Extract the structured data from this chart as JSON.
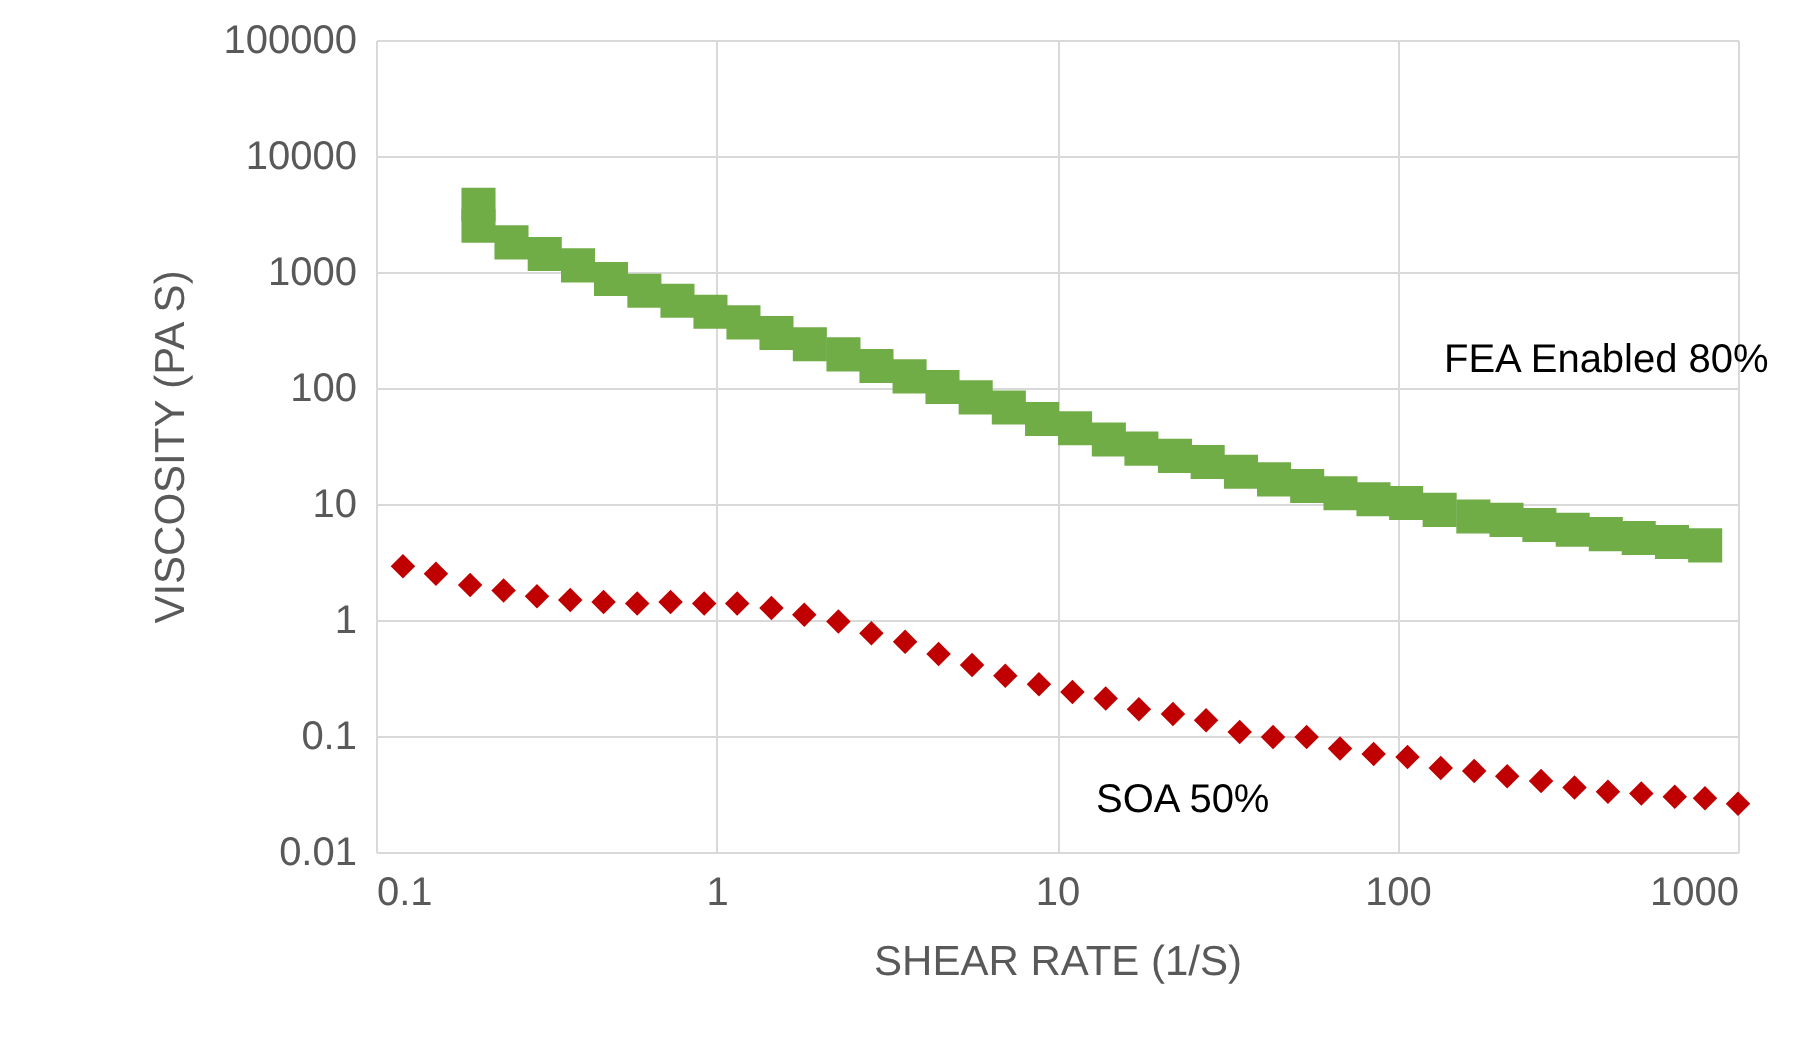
{
  "chart_data": {
    "type": "scatter",
    "xlabel": "SHEAR RATE (1/S)",
    "ylabel": "VISCOSITY (PA S)",
    "log": "xy",
    "grid": true,
    "legend": false,
    "xlim": [
      0.1,
      1000
    ],
    "xticks": [
      0.1,
      1,
      10,
      100,
      1000
    ],
    "ylim": [
      0.01,
      100000
    ],
    "yticks": [
      0.01,
      0.1,
      1,
      10,
      100,
      1000,
      10000,
      100000
    ],
    "series": [
      {
        "name": "FEA Enabled 80%",
        "color": "#70ad47",
        "marker": "square",
        "x": [
          0.2,
          0.2,
          0.25,
          0.313,
          0.392,
          0.49,
          0.614,
          0.768,
          0.96,
          1.2,
          1.5,
          1.88,
          2.36,
          2.95,
          3.69,
          4.61,
          5.77,
          7.22,
          9.04,
          11.3,
          14.2,
          17.7,
          22.2,
          27.7,
          34.7,
          43.4,
          54.3,
          68,
          85,
          106,
          133,
          167,
          209,
          261,
          327,
          409,
          511,
          640,
          801
        ],
        "values": [
          3800,
          2500,
          1800,
          1430,
          1140,
          870,
          690,
          565,
          455,
          368,
          298,
          238,
          195,
          155,
          126,
          102,
          83,
          68,
          54,
          45,
          36,
          30,
          26,
          23,
          19,
          16.3,
          14.3,
          12.4,
          11,
          10.2,
          8.9,
          7.8,
          7.3,
          6.6,
          6.0,
          5.5,
          5.1,
          4.7,
          4.4
        ]
      },
      {
        "name": "SOA 50%",
        "color": "#c00000",
        "marker": "diamond",
        "x": [
          0.12,
          0.15,
          0.189,
          0.237,
          0.297,
          0.372,
          0.466,
          0.585,
          0.733,
          0.92,
          1.15,
          1.45,
          1.81,
          2.28,
          2.85,
          3.58,
          4.49,
          5.63,
          7.05,
          8.85,
          11.1,
          13.9,
          17.4,
          21.9,
          27.4,
          34.4,
          43.1,
          54.1,
          67.8,
          85.1,
          107,
          134,
          168,
          210,
          264,
          331,
          415,
          520,
          652,
          800,
          1000
        ],
        "values": [
          2.9,
          2.5,
          2.0,
          1.8,
          1.6,
          1.49,
          1.43,
          1.39,
          1.43,
          1.39,
          1.39,
          1.27,
          1.11,
          0.97,
          0.77,
          0.65,
          0.51,
          0.41,
          0.33,
          0.28,
          0.24,
          0.21,
          0.17,
          0.155,
          0.137,
          0.108,
          0.098,
          0.098,
          0.078,
          0.07,
          0.066,
          0.053,
          0.05,
          0.045,
          0.041,
          0.036,
          0.033,
          0.032,
          0.03,
          0.029,
          0.026
        ]
      }
    ]
  }
}
